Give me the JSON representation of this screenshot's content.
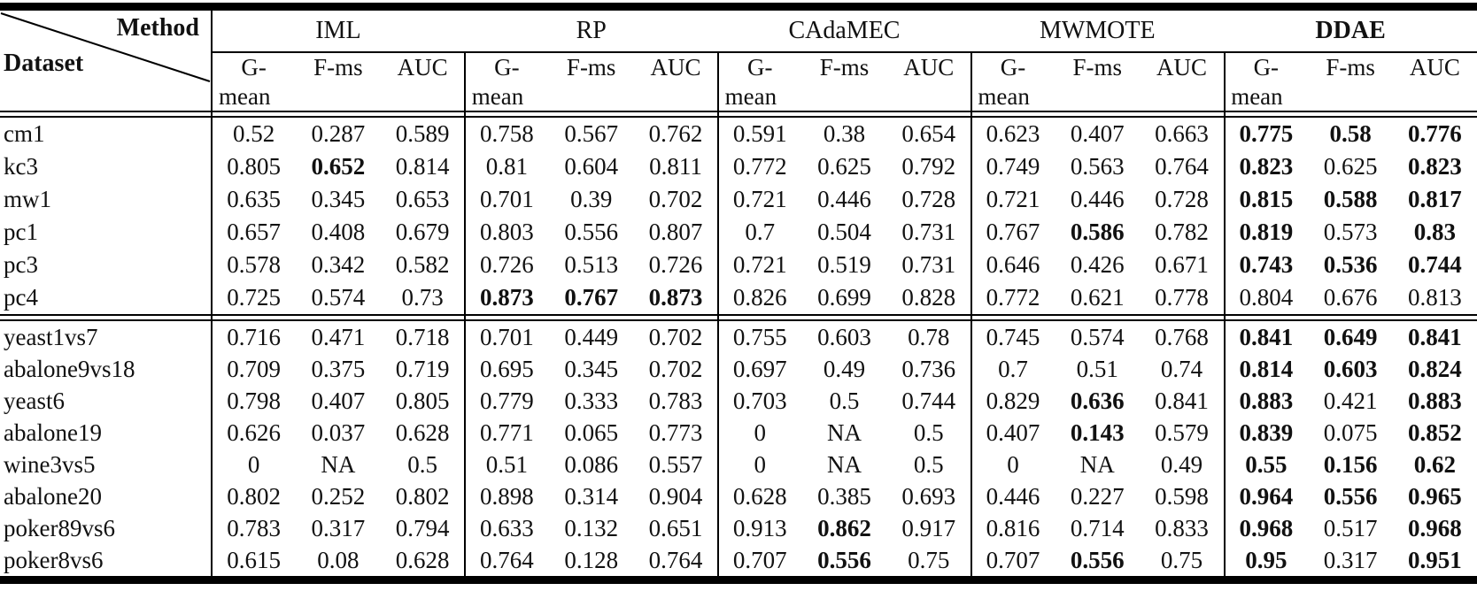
{
  "table": {
    "corner": {
      "top_label": "Method",
      "bottom_label": "Dataset"
    },
    "method_groups": [
      {
        "label": "IML",
        "bold": false
      },
      {
        "label": "RP",
        "bold": false
      },
      {
        "label": "CAdaMEC",
        "bold": false
      },
      {
        "label": "MWMOTE",
        "bold": false
      },
      {
        "label": "DDAE",
        "bold": true
      }
    ],
    "metric_headers": {
      "gmean_line1": "G-",
      "gmean_line2": "mean",
      "fms": "F-ms",
      "auc": "AUC"
    },
    "sections": [
      {
        "rows": [
          {
            "dataset": "cm1",
            "values": [
              "0.52",
              "0.287",
              "0.589",
              "0.758",
              "0.567",
              "0.762",
              "0.591",
              "0.38",
              "0.654",
              "0.623",
              "0.407",
              "0.663",
              "0.775",
              "0.58",
              "0.776"
            ],
            "bold": [
              0,
              0,
              0,
              0,
              0,
              0,
              0,
              0,
              0,
              0,
              0,
              0,
              1,
              1,
              1
            ]
          },
          {
            "dataset": "kc3",
            "values": [
              "0.805",
              "0.652",
              "0.814",
              "0.81",
              "0.604",
              "0.811",
              "0.772",
              "0.625",
              "0.792",
              "0.749",
              "0.563",
              "0.764",
              "0.823",
              "0.625",
              "0.823"
            ],
            "bold": [
              0,
              1,
              0,
              0,
              0,
              0,
              0,
              0,
              0,
              0,
              0,
              0,
              1,
              0,
              1
            ]
          },
          {
            "dataset": "mw1",
            "values": [
              "0.635",
              "0.345",
              "0.653",
              "0.701",
              "0.39",
              "0.702",
              "0.721",
              "0.446",
              "0.728",
              "0.721",
              "0.446",
              "0.728",
              "0.815",
              "0.588",
              "0.817"
            ],
            "bold": [
              0,
              0,
              0,
              0,
              0,
              0,
              0,
              0,
              0,
              0,
              0,
              0,
              1,
              1,
              1
            ]
          },
          {
            "dataset": "pc1",
            "values": [
              "0.657",
              "0.408",
              "0.679",
              "0.803",
              "0.556",
              "0.807",
              "0.7",
              "0.504",
              "0.731",
              "0.767",
              "0.586",
              "0.782",
              "0.819",
              "0.573",
              "0.83"
            ],
            "bold": [
              0,
              0,
              0,
              0,
              0,
              0,
              0,
              0,
              0,
              0,
              1,
              0,
              1,
              0,
              1
            ]
          },
          {
            "dataset": "pc3",
            "values": [
              "0.578",
              "0.342",
              "0.582",
              "0.726",
              "0.513",
              "0.726",
              "0.721",
              "0.519",
              "0.731",
              "0.646",
              "0.426",
              "0.671",
              "0.743",
              "0.536",
              "0.744"
            ],
            "bold": [
              0,
              0,
              0,
              0,
              0,
              0,
              0,
              0,
              0,
              0,
              0,
              0,
              1,
              1,
              1
            ]
          },
          {
            "dataset": "pc4",
            "values": [
              "0.725",
              "0.574",
              "0.73",
              "0.873",
              "0.767",
              "0.873",
              "0.826",
              "0.699",
              "0.828",
              "0.772",
              "0.621",
              "0.778",
              "0.804",
              "0.676",
              "0.813"
            ],
            "bold": [
              0,
              0,
              0,
              1,
              1,
              1,
              0,
              0,
              0,
              0,
              0,
              0,
              0,
              0,
              0
            ]
          }
        ]
      },
      {
        "rows": [
          {
            "dataset": "yeast1vs7",
            "values": [
              "0.716",
              "0.471",
              "0.718",
              "0.701",
              "0.449",
              "0.702",
              "0.755",
              "0.603",
              "0.78",
              "0.745",
              "0.574",
              "0.768",
              "0.841",
              "0.649",
              "0.841"
            ],
            "bold": [
              0,
              0,
              0,
              0,
              0,
              0,
              0,
              0,
              0,
              0,
              0,
              0,
              1,
              1,
              1
            ]
          },
          {
            "dataset": "abalone9vs18",
            "values": [
              "0.709",
              "0.375",
              "0.719",
              "0.695",
              "0.345",
              "0.702",
              "0.697",
              "0.49",
              "0.736",
              "0.7",
              "0.51",
              "0.74",
              "0.814",
              "0.603",
              "0.824"
            ],
            "bold": [
              0,
              0,
              0,
              0,
              0,
              0,
              0,
              0,
              0,
              0,
              0,
              0,
              1,
              1,
              1
            ]
          },
          {
            "dataset": "yeast6",
            "values": [
              "0.798",
              "0.407",
              "0.805",
              "0.779",
              "0.333",
              "0.783",
              "0.703",
              "0.5",
              "0.744",
              "0.829",
              "0.636",
              "0.841",
              "0.883",
              "0.421",
              "0.883"
            ],
            "bold": [
              0,
              0,
              0,
              0,
              0,
              0,
              0,
              0,
              0,
              0,
              1,
              0,
              1,
              0,
              1
            ]
          },
          {
            "dataset": "abalone19",
            "values": [
              "0.626",
              "0.037",
              "0.628",
              "0.771",
              "0.065",
              "0.773",
              "0",
              "NA",
              "0.5",
              "0.407",
              "0.143",
              "0.579",
              "0.839",
              "0.075",
              "0.852"
            ],
            "bold": [
              0,
              0,
              0,
              0,
              0,
              0,
              0,
              0,
              0,
              0,
              1,
              0,
              1,
              0,
              1
            ]
          },
          {
            "dataset": "wine3vs5",
            "values": [
              "0",
              "NA",
              "0.5",
              "0.51",
              "0.086",
              "0.557",
              "0",
              "NA",
              "0.5",
              "0",
              "NA",
              "0.49",
              "0.55",
              "0.156",
              "0.62"
            ],
            "bold": [
              0,
              0,
              0,
              0,
              0,
              0,
              0,
              0,
              0,
              0,
              0,
              0,
              1,
              1,
              1
            ]
          },
          {
            "dataset": "abalone20",
            "values": [
              "0.802",
              "0.252",
              "0.802",
              "0.898",
              "0.314",
              "0.904",
              "0.628",
              "0.385",
              "0.693",
              "0.446",
              "0.227",
              "0.598",
              "0.964",
              "0.556",
              "0.965"
            ],
            "bold": [
              0,
              0,
              0,
              0,
              0,
              0,
              0,
              0,
              0,
              0,
              0,
              0,
              1,
              1,
              1
            ]
          },
          {
            "dataset": "poker89vs6",
            "values": [
              "0.783",
              "0.317",
              "0.794",
              "0.633",
              "0.132",
              "0.651",
              "0.913",
              "0.862",
              "0.917",
              "0.816",
              "0.714",
              "0.833",
              "0.968",
              "0.517",
              "0.968"
            ],
            "bold": [
              0,
              0,
              0,
              0,
              0,
              0,
              0,
              1,
              0,
              0,
              0,
              0,
              1,
              0,
              1
            ]
          },
          {
            "dataset": "poker8vs6",
            "values": [
              "0.615",
              "0.08",
              "0.628",
              "0.764",
              "0.128",
              "0.764",
              "0.707",
              "0.556",
              "0.75",
              "0.707",
              "0.556",
              "0.75",
              "0.95",
              "0.317",
              "0.951"
            ],
            "bold": [
              0,
              0,
              0,
              0,
              0,
              0,
              0,
              1,
              0,
              0,
              1,
              0,
              1,
              0,
              1
            ]
          }
        ]
      }
    ]
  },
  "colors": {
    "background": "#ffffff",
    "text": "#111111",
    "rule": "#000000"
  }
}
